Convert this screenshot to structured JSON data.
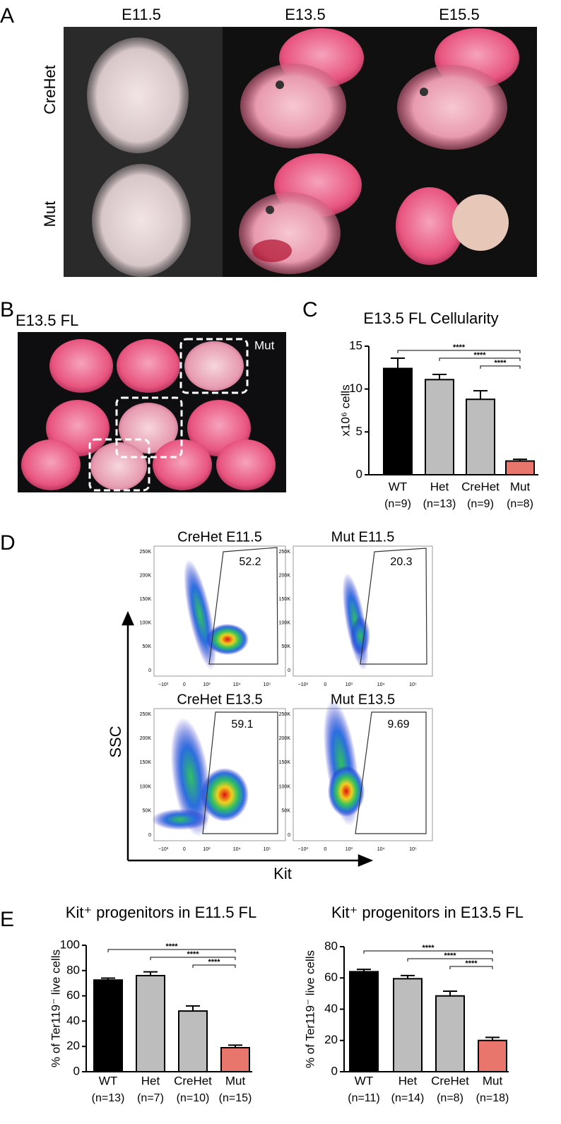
{
  "panel_a": {
    "label": "A",
    "columns": [
      "E11.5",
      "E13.5",
      "E15.5"
    ],
    "rows": [
      "CreHet",
      "Mut"
    ]
  },
  "panel_b": {
    "label": "B",
    "title": "E13.5 FL",
    "annotation": "Mut"
  },
  "panel_d": {
    "label": "D",
    "x_axis": "Kit",
    "y_axis": "SSC",
    "y_tick_labels": [
      "0",
      "50K",
      "100K",
      "150K",
      "200K",
      "250K"
    ],
    "x_tick_labels": [
      "−10³",
      "0",
      "10³",
      "10⁴",
      "10⁵"
    ],
    "plots": [
      {
        "title": "CreHet E11.5",
        "gate": "52.2"
      },
      {
        "title": "Mut E11.5",
        "gate": "20.3"
      },
      {
        "title": "CreHet E13.5",
        "gate": "59.1"
      },
      {
        "title": "Mut E13.5",
        "gate": "9.69"
      }
    ]
  },
  "chart_data": [
    {
      "type": "bar",
      "panel_label": "C",
      "title": "E13.5 FL Cellularity",
      "y_label": "x10⁶ cells",
      "categories": [
        "WT",
        "Het",
        "CreHet",
        "Mut"
      ],
      "n_labels": [
        "(n=9)",
        "(n=13)",
        "(n=9)",
        "(n=8)"
      ],
      "values": [
        12.4,
        11.1,
        8.8,
        1.6
      ],
      "errors": [
        1.2,
        0.6,
        1.0,
        0.2
      ],
      "colors": [
        "#000000",
        "#bdbdbd",
        "#bdbdbd",
        "#e8766c"
      ],
      "ylim": [
        0,
        15
      ],
      "yticks": [
        0,
        5,
        10,
        15
      ],
      "significance": [
        "****",
        "****",
        "****"
      ]
    },
    {
      "type": "bar",
      "panel_label": "E",
      "title": "Kit⁺ progenitors in E11.5 FL",
      "y_label": "% of Ter119⁻ live cells",
      "categories": [
        "WT",
        "Het",
        "CreHet",
        "Mut"
      ],
      "n_labels": [
        "(n=13)",
        "(n=7)",
        "(n=10)",
        "(n=15)"
      ],
      "values": [
        72.5,
        76,
        48,
        19
      ],
      "errors": [
        1.5,
        3,
        4,
        2
      ],
      "colors": [
        "#000000",
        "#bdbdbd",
        "#bdbdbd",
        "#e8766c"
      ],
      "ylim": [
        0,
        100
      ],
      "yticks": [
        0,
        20,
        40,
        60,
        80,
        100
      ],
      "significance": [
        "****",
        "****",
        "****"
      ]
    },
    {
      "type": "bar",
      "title": "Kit⁺ progenitors in E13.5 FL",
      "y_label": "% of Ter119⁻ live cells",
      "categories": [
        "WT",
        "Het",
        "CreHet",
        "Mut"
      ],
      "n_labels": [
        "(n=11)",
        "(n=14)",
        "(n=8)",
        "(n=18)"
      ],
      "values": [
        64,
        59.5,
        48.5,
        20
      ],
      "errors": [
        1.5,
        2,
        3,
        2
      ],
      "colors": [
        "#000000",
        "#bdbdbd",
        "#bdbdbd",
        "#e8766c"
      ],
      "ylim": [
        0,
        80
      ],
      "yticks": [
        0,
        20,
        40,
        60,
        80
      ],
      "significance": [
        "****",
        "****",
        "****"
      ]
    }
  ]
}
